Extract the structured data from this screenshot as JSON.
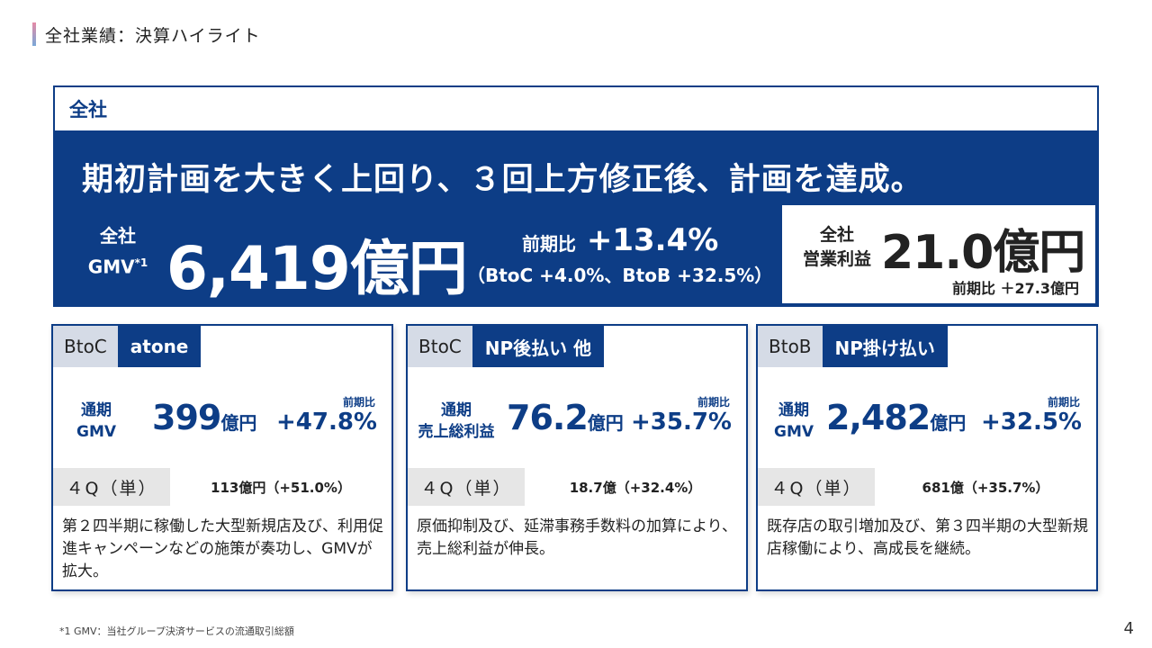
{
  "header": {
    "title": "全社業績：決算ハイライト"
  },
  "main": {
    "label": "全社",
    "headline": "期初計画を大きく上回り、３回上方修正後、計画を達成。",
    "gmv": {
      "label_line1": "全社",
      "label_line2": "GMV",
      "footnote_mark": "*1",
      "value": "6,419億円",
      "yoy_label": "前期比",
      "yoy_value": "+13.4%",
      "breakdown": "（BtoC +4.0%、BtoB +32.5%）"
    },
    "operating_profit": {
      "label_line1": "全社",
      "label_line2": "営業利益",
      "value": "21.0億円",
      "yoy": "前期比 ＋27.3億円"
    }
  },
  "cards": [
    {
      "category": "BtoC",
      "name": "atone",
      "metric_line1": "通期",
      "metric_line2": "GMV",
      "value": "399",
      "unit": "億円",
      "yoy_label": "前期比",
      "yoy_value": "+47.8%",
      "q_label": "４Q（単）",
      "q_value": "113億円（+51.0%）",
      "description": "第２四半期に稼働した大型新規店及び、利用促進キャンペーンなどの施策が奏功し、GMVが拡大。"
    },
    {
      "category": "BtoC",
      "name": "NP後払い 他",
      "metric_line1": "通期",
      "metric_line2": "売上総利益",
      "value": "76.2",
      "unit": "億円",
      "yoy_label": "前期比",
      "yoy_value": "+35.7%",
      "q_label": "４Q（単）",
      "q_value": "18.7億（+32.4%）",
      "description": "原価抑制及び、延滞事務手数料の加算により、売上総利益が伸長。"
    },
    {
      "category": "BtoB",
      "name": "NP掛け払い",
      "metric_line1": "通期",
      "metric_line2": "GMV",
      "value": "2,482",
      "unit": "億円",
      "yoy_label": "前期比",
      "yoy_value": "+32.5%",
      "q_label": "４Q（単）",
      "q_value": "681億（+35.7%）",
      "description": "既存店の取引増加及び、第３四半期の大型新規店稼働により、高成長を継続。"
    }
  ],
  "footnote": "*1 GMV：当社グループ決済サービスの流通取引総額",
  "page_number": "4",
  "colors": {
    "navy": "#0d3d86",
    "tag_gray": "#d5dbe6",
    "q_gray": "#e6e6e6"
  }
}
